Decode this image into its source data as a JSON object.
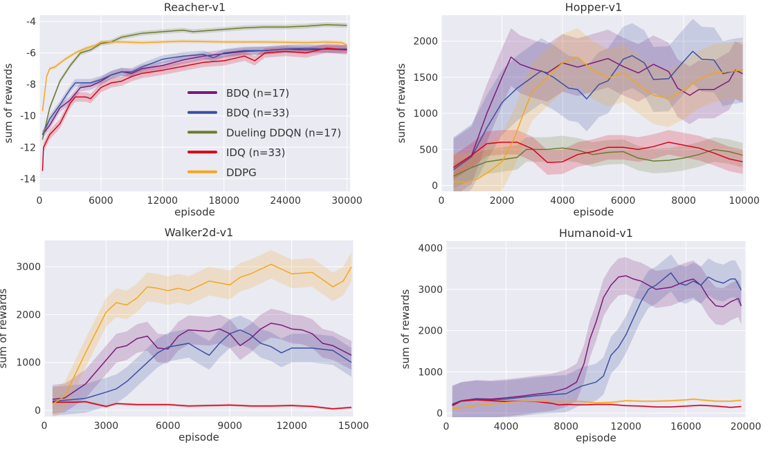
{
  "colors": {
    "background": "#eaeaf2",
    "grid": "#ffffff",
    "BDQ (n=17)": "#7a1a7a",
    "BDQ (n=33)": "#3a4fa0",
    "Dueling DDQN (n=17)": "#6b7a2e",
    "IDQ (n=33)": "#d7001a",
    "DDPG": "#f5a51c"
  },
  "legend": {
    "placement": "center-right of Reacher-v1 panel",
    "entries": [
      "BDQ (n=17)",
      "BDQ (n=33)",
      "Dueling DDQN (n=17)",
      "IDQ (n=33)",
      "DDPG"
    ]
  },
  "chart_data": [
    {
      "type": "line",
      "title": "Reacher-v1",
      "xlabel": "episode",
      "ylabel": "sum of rewards",
      "xlim": [
        0,
        30300
      ],
      "ylim": [
        -14.8,
        -3.6
      ],
      "xticks": [
        0,
        6000,
        12000,
        18000,
        24000,
        30000
      ],
      "yticks": [
        -4,
        -6,
        -8,
        -10,
        -12,
        -14
      ],
      "grid": true,
      "series": [
        {
          "name": "BDQ (n=17)",
          "spread": 0.25,
          "x": [
            300,
            1000,
            2000,
            3000,
            4000,
            5000,
            6000,
            7000,
            8000,
            9000,
            10000,
            12000,
            14000,
            16000,
            18000,
            20000,
            22000,
            24000,
            26000,
            28000,
            30000
          ],
          "y": [
            -11.2,
            -10.6,
            -9.5,
            -9.0,
            -8.2,
            -8.1,
            -7.8,
            -7.4,
            -7.2,
            -7.3,
            -7.0,
            -6.8,
            -6.45,
            -6.2,
            -6.05,
            -5.9,
            -5.85,
            -5.75,
            -5.8,
            -5.75,
            -5.8
          ]
        },
        {
          "name": "BDQ (n=33)",
          "spread": 0.25,
          "x": [
            300,
            1000,
            2000,
            3000,
            3500,
            5000,
            6000,
            7000,
            8000,
            9000,
            10000,
            12000,
            14000,
            16000,
            17000,
            18000,
            20000,
            22000,
            24000,
            26000,
            28000,
            30000
          ],
          "y": [
            -11.2,
            -10.2,
            -9.3,
            -8.3,
            -7.9,
            -7.9,
            -7.7,
            -7.4,
            -7.2,
            -7.2,
            -6.9,
            -6.4,
            -6.2,
            -6.1,
            -6.3,
            -6.0,
            -5.85,
            -5.85,
            -5.75,
            -5.7,
            -5.75,
            -5.75
          ]
        },
        {
          "name": "Dueling DDQN (n=17)",
          "spread": 0.15,
          "x": [
            300,
            1000,
            2000,
            3000,
            4000,
            5000,
            6000,
            7000,
            8000,
            10000,
            12000,
            14000,
            15000,
            18000,
            20000,
            22000,
            24000,
            26000,
            28000,
            30000
          ],
          "y": [
            -11.5,
            -9.5,
            -7.8,
            -6.8,
            -6.0,
            -5.8,
            -5.4,
            -5.3,
            -5.0,
            -4.75,
            -4.65,
            -4.55,
            -4.65,
            -4.5,
            -4.4,
            -4.35,
            -4.35,
            -4.3,
            -4.2,
            -4.25
          ]
        },
        {
          "name": "IDQ (n=33)",
          "spread": 0.3,
          "x": [
            300,
            400,
            1000,
            2000,
            3000,
            3500,
            4500,
            5000,
            6000,
            7000,
            8000,
            9000,
            10000,
            12000,
            14000,
            16000,
            18000,
            20000,
            21000,
            22000,
            24000,
            26000,
            28000,
            30000
          ],
          "y": [
            -13.5,
            -12.0,
            -11.2,
            -10.5,
            -9.2,
            -8.8,
            -8.8,
            -8.9,
            -8.2,
            -7.9,
            -7.8,
            -7.5,
            -7.3,
            -7.1,
            -6.85,
            -6.6,
            -6.5,
            -6.2,
            -6.5,
            -6.0,
            -5.9,
            -6.0,
            -5.7,
            -5.8
          ]
        },
        {
          "name": "DDPG",
          "spread": 0.12,
          "x": [
            300,
            700,
            1000,
            1500,
            2500,
            3500,
            4500,
            5500,
            6000,
            8000,
            10000,
            14000,
            18000,
            22000,
            26000,
            28000,
            29500,
            30000
          ],
          "y": [
            -9.7,
            -7.5,
            -7.0,
            -6.9,
            -6.4,
            -6.0,
            -5.7,
            -5.5,
            -5.3,
            -5.3,
            -5.35,
            -5.25,
            -5.3,
            -5.3,
            -5.35,
            -5.3,
            -5.35,
            -5.5
          ]
        }
      ]
    },
    {
      "type": "line",
      "title": "Hopper-v1",
      "xlabel": "episode",
      "ylabel": "sum of rewards",
      "xlim": [
        0,
        10050
      ],
      "ylim": [
        -80,
        2360
      ],
      "xticks": [
        0,
        2000,
        4000,
        6000,
        8000,
        10000
      ],
      "yticks": [
        0,
        500,
        1000,
        1500,
        2000
      ],
      "grid": true,
      "series": [
        {
          "name": "BDQ (n=17)",
          "spread": 400,
          "x": [
            400,
            1000,
            1500,
            2000,
            2300,
            2600,
            3000,
            3500,
            4000,
            4500,
            5000,
            5500,
            6000,
            6500,
            7000,
            7500,
            7800,
            8200,
            8500,
            9000,
            9500,
            9700,
            9950
          ],
          "y": [
            250,
            420,
            1000,
            1500,
            1780,
            1680,
            1620,
            1560,
            1700,
            1640,
            1700,
            1760,
            1650,
            1560,
            1680,
            1580,
            1350,
            1250,
            1330,
            1330,
            1450,
            1600,
            1550
          ]
        },
        {
          "name": "BDQ (n=33)",
          "spread": 450,
          "x": [
            400,
            1000,
            1500,
            2000,
            2500,
            3000,
            3300,
            3700,
            4200,
            4500,
            4800,
            5200,
            5500,
            6000,
            6300,
            6700,
            7000,
            7500,
            8000,
            8300,
            8600,
            9000,
            9300,
            9600,
            9950
          ],
          "y": [
            220,
            400,
            800,
            1150,
            1350,
            1500,
            1590,
            1500,
            1350,
            1330,
            1200,
            1400,
            1450,
            1750,
            1800,
            1700,
            1470,
            1480,
            1720,
            1860,
            1750,
            1740,
            1550,
            1580,
            1600
          ]
        },
        {
          "name": "Dueling DDQN (n=17)",
          "spread": 170,
          "x": [
            400,
            1000,
            1500,
            2000,
            2500,
            2800,
            3500,
            4000,
            4500,
            5000,
            5500,
            6000,
            6500,
            7000,
            7500,
            8000,
            8500,
            9000,
            9500,
            9950
          ],
          "y": [
            130,
            250,
            330,
            360,
            390,
            500,
            500,
            520,
            490,
            430,
            460,
            470,
            380,
            340,
            350,
            380,
            430,
            500,
            470,
            420
          ]
        },
        {
          "name": "IDQ (n=33)",
          "spread": 170,
          "x": [
            400,
            1000,
            1500,
            2000,
            2500,
            3000,
            3500,
            4000,
            4500,
            5000,
            5500,
            6000,
            6500,
            7000,
            7500,
            8000,
            8500,
            9000,
            9500,
            9950
          ],
          "y": [
            250,
            420,
            580,
            600,
            600,
            510,
            320,
            330,
            430,
            470,
            530,
            530,
            500,
            540,
            600,
            560,
            520,
            450,
            370,
            330
          ]
        },
        {
          "name": "DDPG",
          "spread": 400,
          "x": [
            400,
            800,
            1200,
            1600,
            2000,
            2400,
            2800,
            3000,
            3500,
            4000,
            4500,
            5000,
            5500,
            6000,
            6500,
            7000,
            7500,
            8000,
            8500,
            9000,
            9500,
            9950
          ],
          "y": [
            55,
            45,
            90,
            200,
            330,
            650,
            1100,
            1300,
            1500,
            1700,
            1780,
            1600,
            1490,
            1560,
            1400,
            1250,
            1210,
            1320,
            1470,
            1560,
            1580,
            1600
          ]
        }
      ]
    },
    {
      "type": "line",
      "title": "Walker2d-v1",
      "xlabel": "episode",
      "ylabel": "sum of rewards",
      "xlim": [
        0,
        15000
      ],
      "ylim": [
        -130,
        3550
      ],
      "xticks": [
        0,
        3000,
        6000,
        9000,
        12000,
        15000
      ],
      "yticks": [
        0,
        1000,
        2000,
        3000
      ],
      "grid": true,
      "series": [
        {
          "name": "BDQ (n=17)",
          "spread": 300,
          "x": [
            400,
            1000,
            2000,
            3000,
            3500,
            4000,
            4500,
            5000,
            5500,
            6000,
            6500,
            7000,
            8000,
            8500,
            9000,
            9500,
            10000,
            10500,
            11000,
            11500,
            12000,
            12500,
            13000,
            13500,
            14000,
            14900
          ],
          "y": [
            230,
            260,
            550,
            1050,
            1300,
            1350,
            1500,
            1550,
            1300,
            1280,
            1550,
            1680,
            1650,
            1700,
            1600,
            1350,
            1500,
            1700,
            1820,
            1780,
            1700,
            1680,
            1600,
            1400,
            1350,
            1150
          ]
        },
        {
          "name": "BDQ (n=33)",
          "spread": 300,
          "x": [
            400,
            1000,
            2000,
            3000,
            3500,
            4000,
            4500,
            5000,
            5500,
            6000,
            7000,
            7500,
            8000,
            8500,
            9000,
            9500,
            10000,
            10500,
            11000,
            11500,
            12000,
            13000,
            14000,
            14900
          ],
          "y": [
            190,
            210,
            250,
            380,
            450,
            600,
            800,
            1000,
            1200,
            1320,
            1400,
            1270,
            1150,
            1400,
            1600,
            1680,
            1580,
            1400,
            1330,
            1200,
            1300,
            1300,
            1250,
            1000
          ]
        },
        {
          "name": "IDQ (n=33)",
          "spread": 25,
          "x": [
            400,
            1500,
            2000,
            2500,
            3000,
            3500,
            4500,
            6000,
            7000,
            8000,
            9000,
            10000,
            11000,
            12000,
            13000,
            14000,
            14900
          ],
          "y": [
            170,
            170,
            180,
            130,
            80,
            140,
            120,
            120,
            90,
            100,
            110,
            90,
            90,
            100,
            80,
            30,
            60
          ]
        },
        {
          "name": "DDPG",
          "spread": 300,
          "x": [
            400,
            1000,
            2000,
            3000,
            3500,
            4000,
            4500,
            5000,
            5500,
            6000,
            6500,
            7000,
            8000,
            9000,
            9500,
            10000,
            11000,
            12000,
            13000,
            14000,
            14500,
            14900
          ],
          "y": [
            130,
            300,
            1200,
            2050,
            2250,
            2200,
            2350,
            2580,
            2550,
            2500,
            2550,
            2500,
            2700,
            2620,
            2780,
            2850,
            3050,
            2850,
            2880,
            2580,
            2700,
            3000
          ]
        }
      ]
    },
    {
      "type": "line",
      "title": "Humanoid-v1",
      "xlabel": "episode",
      "ylabel": "sum of rewards",
      "xlim": [
        0,
        20000
      ],
      "ylim": [
        -100,
        4170
      ],
      "xticks": [
        0,
        4000,
        8000,
        12000,
        16000,
        20000
      ],
      "yticks": [
        0,
        1000,
        2000,
        3000,
        4000
      ],
      "grid": true,
      "series": [
        {
          "name": "BDQ (n=17)",
          "spread": 450,
          "x": [
            400,
            1000,
            2000,
            3000,
            4000,
            5000,
            6000,
            7000,
            8000,
            8700,
            9200,
            9600,
            10000,
            10500,
            11000,
            11500,
            12000,
            12500,
            13000,
            13500,
            14000,
            15000,
            16000,
            16500,
            17000,
            17500,
            18000,
            18500,
            19000,
            19500,
            19700
          ],
          "y": [
            200,
            300,
            350,
            340,
            370,
            410,
            460,
            500,
            600,
            750,
            1200,
            1800,
            2200,
            2800,
            3100,
            3300,
            3330,
            3250,
            3200,
            3100,
            3000,
            3050,
            3200,
            3250,
            3100,
            2800,
            2600,
            2580,
            2700,
            2780,
            2600
          ]
        },
        {
          "name": "BDQ (n=33)",
          "spread": 450,
          "x": [
            400,
            1000,
            2000,
            3000,
            4000,
            5000,
            6000,
            7000,
            8000,
            9000,
            10000,
            10500,
            11000,
            11500,
            12000,
            12500,
            13000,
            13500,
            14000,
            14500,
            15000,
            15500,
            16000,
            16500,
            17000,
            17500,
            18000,
            18500,
            19000,
            19300,
            19700
          ],
          "y": [
            220,
            300,
            340,
            320,
            340,
            380,
            420,
            450,
            470,
            650,
            750,
            900,
            1400,
            1600,
            1900,
            2300,
            2700,
            3000,
            3100,
            3250,
            3400,
            3150,
            3100,
            3200,
            3100,
            3300,
            3200,
            3150,
            3250,
            3250,
            2980
          ]
        },
        {
          "name": "IDQ (n=33)",
          "spread": 20,
          "x": [
            400,
            1000,
            2000,
            3000,
            4000,
            5000,
            6000,
            7000,
            7500,
            8000,
            9000,
            10000,
            11000,
            12000,
            13000,
            14000,
            15000,
            16000,
            17000,
            18000,
            19000,
            19700
          ],
          "y": [
            180,
            290,
            320,
            300,
            280,
            290,
            280,
            240,
            200,
            210,
            200,
            210,
            210,
            180,
            170,
            150,
            150,
            170,
            190,
            170,
            140,
            160
          ]
        },
        {
          "name": "DDPG",
          "spread": 25,
          "x": [
            400,
            1000,
            2000,
            3000,
            4000,
            5000,
            6000,
            7000,
            8000,
            9000,
            10000,
            11000,
            12000,
            13000,
            14000,
            15000,
            16000,
            16500,
            17000,
            18000,
            19000,
            19700
          ],
          "y": [
            110,
            130,
            180,
            220,
            260,
            290,
            290,
            280,
            280,
            280,
            250,
            260,
            300,
            290,
            290,
            300,
            320,
            340,
            320,
            290,
            290,
            310
          ]
        }
      ]
    }
  ]
}
